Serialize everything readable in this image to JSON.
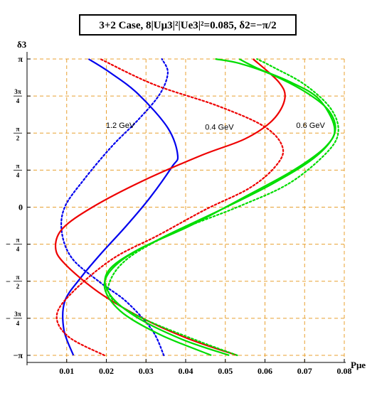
{
  "chart_data": {
    "type": "line",
    "title": "3+2 Case, 8|Uμ3|²|Ue3|²=0.085, δ2=−π/2",
    "xlabel": "Pμe",
    "ylabel": "δ3",
    "xlim": [
      0.0,
      0.08
    ],
    "ylim": [
      -3.1416,
      3.1416
    ],
    "grid": true,
    "x_ticks": [
      "0.01",
      "0.02",
      "0.03",
      "0.04",
      "0.05",
      "0.06",
      "0.07",
      "0.08"
    ],
    "x_tick_values": [
      0.01,
      0.02,
      0.03,
      0.04,
      0.05,
      0.06,
      0.07,
      0.08
    ],
    "y_ticks": [
      {
        "value": 3.1416,
        "label": "π"
      },
      {
        "value": 2.3562,
        "label": "3π/4"
      },
      {
        "value": 1.5708,
        "label": "π/2"
      },
      {
        "value": 0.7854,
        "label": "π/4"
      },
      {
        "value": 0,
        "label": "0"
      },
      {
        "value": -0.7854,
        "label": "−π/4"
      },
      {
        "value": -1.5708,
        "label": "−π/2"
      },
      {
        "value": -2.3562,
        "label": "−3π/4"
      },
      {
        "value": -3.1416,
        "label": "−π"
      }
    ],
    "annotations": [
      {
        "text": "1.2 GeV",
        "x": 0.0235,
        "y": 1.68
      },
      {
        "text": "0.4 GeV",
        "x": 0.0485,
        "y": 1.64
      },
      {
        "text": "0.6 GeV",
        "x": 0.0715,
        "y": 1.68
      }
    ],
    "series": [
      {
        "label": "1.2 GeV",
        "color": "#0000ee",
        "style": "solid",
        "points": [
          [
            0.0117,
            -3.1416
          ],
          [
            0.0093,
            -2.6
          ],
          [
            0.0095,
            -2.0
          ],
          [
            0.0135,
            -1.5
          ],
          [
            0.0185,
            -1.0
          ],
          [
            0.025,
            -0.4
          ],
          [
            0.031,
            0.2
          ],
          [
            0.0365,
            0.85
          ],
          [
            0.038,
            1.1
          ],
          [
            0.0355,
            1.68
          ],
          [
            0.028,
            2.4
          ],
          [
            0.021,
            2.85
          ],
          [
            0.0155,
            3.1416
          ]
        ]
      },
      {
        "label": "1.2 GeV",
        "color": "#0000ee",
        "style": "dotted",
        "points": [
          [
            0.0345,
            -3.1416
          ],
          [
            0.0315,
            -2.6
          ],
          [
            0.025,
            -2.0
          ],
          [
            0.0185,
            -1.6
          ],
          [
            0.0115,
            -1.1
          ],
          [
            0.0088,
            -0.55
          ],
          [
            0.0095,
            0.0
          ],
          [
            0.0145,
            0.6
          ],
          [
            0.0215,
            1.3
          ],
          [
            0.028,
            1.85
          ],
          [
            0.0335,
            2.4
          ],
          [
            0.0355,
            2.85
          ],
          [
            0.034,
            3.1416
          ]
        ]
      },
      {
        "label": "0.4 GeV",
        "color": "#ee0000",
        "style": "solid",
        "points": [
          [
            0.053,
            -3.1416
          ],
          [
            0.041,
            -2.8
          ],
          [
            0.029,
            -2.35
          ],
          [
            0.018,
            -1.8
          ],
          [
            0.0095,
            -1.2
          ],
          [
            0.0072,
            -0.85
          ],
          [
            0.009,
            -0.45
          ],
          [
            0.0165,
            0.0
          ],
          [
            0.029,
            0.55
          ],
          [
            0.044,
            1.1
          ],
          [
            0.055,
            1.45
          ],
          [
            0.062,
            1.85
          ],
          [
            0.065,
            2.3
          ],
          [
            0.0635,
            2.65
          ],
          [
            0.057,
            3.1416
          ]
        ]
      },
      {
        "label": "0.4 GeV",
        "color": "#ee0000",
        "style": "dotted",
        "points": [
          [
            0.0195,
            -3.1416
          ],
          [
            0.0105,
            -2.75
          ],
          [
            0.0075,
            -2.3
          ],
          [
            0.0115,
            -1.8
          ],
          [
            0.0215,
            -1.1
          ],
          [
            0.033,
            -0.6
          ],
          [
            0.045,
            -0.05
          ],
          [
            0.056,
            0.4
          ],
          [
            0.0625,
            0.85
          ],
          [
            0.0645,
            1.25
          ],
          [
            0.06,
            1.7
          ],
          [
            0.048,
            2.15
          ],
          [
            0.032,
            2.6
          ],
          [
            0.0185,
            3.1416
          ]
        ]
      },
      {
        "label": "0.6 GeV",
        "color": "#00dd00",
        "style": "solid",
        "points": [
          [
            0.051,
            -3.1416
          ],
          [
            0.039,
            -2.8
          ],
          [
            0.027,
            -2.3
          ],
          [
            0.0205,
            -1.8
          ],
          [
            0.0205,
            -1.35
          ],
          [
            0.028,
            -0.9
          ],
          [
            0.041,
            -0.4
          ],
          [
            0.0545,
            0.2
          ],
          [
            0.0675,
            0.8
          ],
          [
            0.0755,
            1.3
          ],
          [
            0.0775,
            1.7
          ],
          [
            0.0735,
            2.3
          ],
          [
            0.0665,
            2.65
          ],
          [
            0.058,
            2.95
          ],
          [
            0.0535,
            3.1416
          ]
        ]
      },
      {
        "label": "0.6 GeV",
        "color": "#00dd00",
        "style": "dotted",
        "points": [
          [
            0.053,
            -3.1416
          ],
          [
            0.042,
            -2.8
          ],
          [
            0.029,
            -2.35
          ],
          [
            0.0215,
            -1.95
          ],
          [
            0.021,
            -1.55
          ],
          [
            0.026,
            -1.05
          ],
          [
            0.038,
            -0.5
          ],
          [
            0.053,
            0.0
          ],
          [
            0.066,
            0.5
          ],
          [
            0.0755,
            1.15
          ],
          [
            0.0785,
            1.6
          ],
          [
            0.0765,
            2.1
          ],
          [
            0.07,
            2.6
          ],
          [
            0.0625,
            2.95
          ],
          [
            0.058,
            3.1416
          ]
        ]
      },
      {
        "label": "0.6 GeV",
        "color": "#00dd00",
        "style": "solid",
        "points": [
          [
            0.0465,
            -3.1416
          ],
          [
            0.0335,
            -2.7
          ],
          [
            0.0235,
            -2.2
          ],
          [
            0.0195,
            -1.65
          ],
          [
            0.0235,
            -1.15
          ],
          [
            0.034,
            -0.65
          ],
          [
            0.049,
            -0.05
          ],
          [
            0.062,
            0.5
          ],
          [
            0.0725,
            1.05
          ],
          [
            0.0775,
            1.55
          ],
          [
            0.0765,
            2.0
          ],
          [
            0.071,
            2.4
          ],
          [
            0.062,
            2.8
          ],
          [
            0.0535,
            3.05
          ],
          [
            0.0475,
            3.1416
          ]
        ]
      }
    ]
  }
}
